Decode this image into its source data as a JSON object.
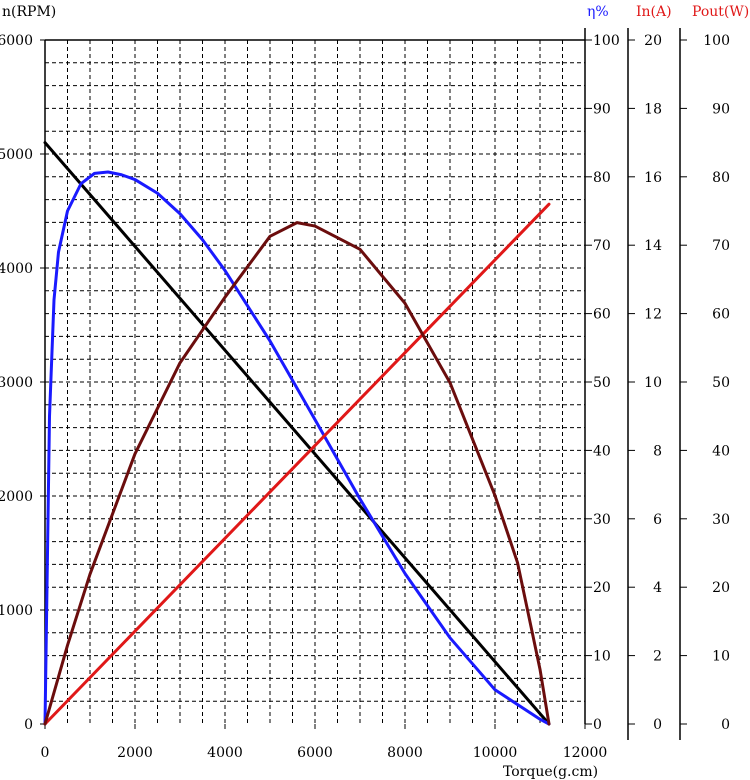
{
  "chart_data": {
    "type": "line",
    "x": {
      "label": "Torque(g.cm)",
      "range": [
        0,
        12000
      ],
      "ticks": [
        0,
        2000,
        4000,
        6000,
        8000,
        10000,
        12000
      ]
    },
    "axes": {
      "speed": {
        "label": "n(RPM)",
        "color": "#000000",
        "range": [
          0,
          6000
        ],
        "ticks": [
          0,
          1000,
          2000,
          3000,
          4000,
          5000,
          6000
        ]
      },
      "efficiency": {
        "label": "η%",
        "color": "#1a1aff",
        "range": [
          0,
          100
        ],
        "ticks": [
          0,
          10,
          20,
          30,
          40,
          50,
          60,
          70,
          80,
          90,
          100
        ]
      },
      "current": {
        "label": "In(A)",
        "color": "#e01818",
        "range": [
          0,
          20
        ],
        "ticks": [
          0,
          2,
          4,
          6,
          8,
          10,
          12,
          14,
          16,
          18,
          20
        ]
      },
      "power": {
        "label": "Pout(W)",
        "color": "#e01818",
        "range": [
          0,
          100
        ],
        "ticks": [
          0,
          10,
          20,
          30,
          40,
          50,
          60,
          70,
          80,
          90,
          100
        ]
      }
    },
    "grid": true,
    "series": [
      {
        "key": "speed",
        "axis": "speed",
        "color": "#000000",
        "x": [
          0,
          11200
        ],
        "y": [
          5100,
          0
        ]
      },
      {
        "key": "efficiency",
        "axis": "efficiency",
        "color": "#1a1aff",
        "x": [
          0,
          100,
          200,
          300,
          500,
          800,
          1100,
          1400,
          1700,
          2000,
          2500,
          3000,
          3500,
          4000,
          5000,
          6000,
          7000,
          8000,
          9000,
          10000,
          11000,
          11200
        ],
        "y": [
          0,
          45,
          62,
          69,
          75,
          79,
          80.5,
          80.7,
          80.3,
          79.6,
          77.6,
          74.6,
          70.8,
          66.3,
          56,
          44.5,
          32.9,
          22,
          12.6,
          5,
          0.7,
          0
        ]
      },
      {
        "key": "current",
        "axis": "current",
        "color": "#e01818",
        "x": [
          0,
          11200
        ],
        "y": [
          0,
          15.2
        ]
      },
      {
        "key": "power",
        "axis": "power",
        "color": "#6b0d0d",
        "x": [
          0,
          500,
          1000,
          2000,
          3000,
          4000,
          5000,
          5600,
          6000,
          7000,
          8000,
          9000,
          10000,
          10500,
          11000,
          11200
        ],
        "y": [
          0,
          11.5,
          21.9,
          39.5,
          52.8,
          62.4,
          71.3,
          73.3,
          72.8,
          69.4,
          61.5,
          49.9,
          33.4,
          23.6,
          8,
          0
        ]
      }
    ]
  }
}
